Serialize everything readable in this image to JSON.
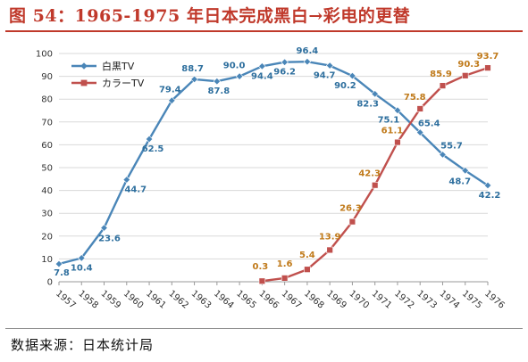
{
  "figure_title": "图 54：1965-1975 年日本完成黑白→彩电的更替",
  "source": "数据来源：日本统计局",
  "chart_data": {
    "type": "line",
    "x": [
      "1957",
      "1958",
      "1959",
      "1960",
      "1961",
      "1962",
      "1963",
      "1964",
      "1965",
      "1966",
      "1967",
      "1968",
      "1969",
      "1970",
      "1971",
      "1972",
      "1973",
      "1974",
      "1975",
      "1976"
    ],
    "ylim": [
      0,
      100
    ],
    "yticks": [
      0,
      10,
      20,
      30,
      40,
      50,
      60,
      70,
      80,
      90,
      100
    ],
    "grid": true,
    "legend_position": "top-left",
    "series": [
      {
        "name": "白黒TV",
        "color": "#4a86b8",
        "label_color": "#2e6f9e",
        "marker": "diamond",
        "values": [
          7.8,
          10.4,
          23.6,
          44.7,
          62.5,
          79.4,
          88.7,
          87.8,
          90.0,
          94.4,
          96.2,
          96.4,
          94.7,
          90.2,
          82.3,
          75.1,
          65.4,
          55.7,
          48.7,
          42.2
        ]
      },
      {
        "name": "カラーTV",
        "color": "#c0504d",
        "label_color": "#c07a1a",
        "marker": "square",
        "values": [
          null,
          null,
          null,
          null,
          null,
          null,
          null,
          null,
          null,
          0.3,
          1.6,
          5.4,
          13.9,
          26.3,
          42.3,
          61.1,
          75.8,
          85.9,
          90.3,
          93.7
        ]
      }
    ]
  }
}
